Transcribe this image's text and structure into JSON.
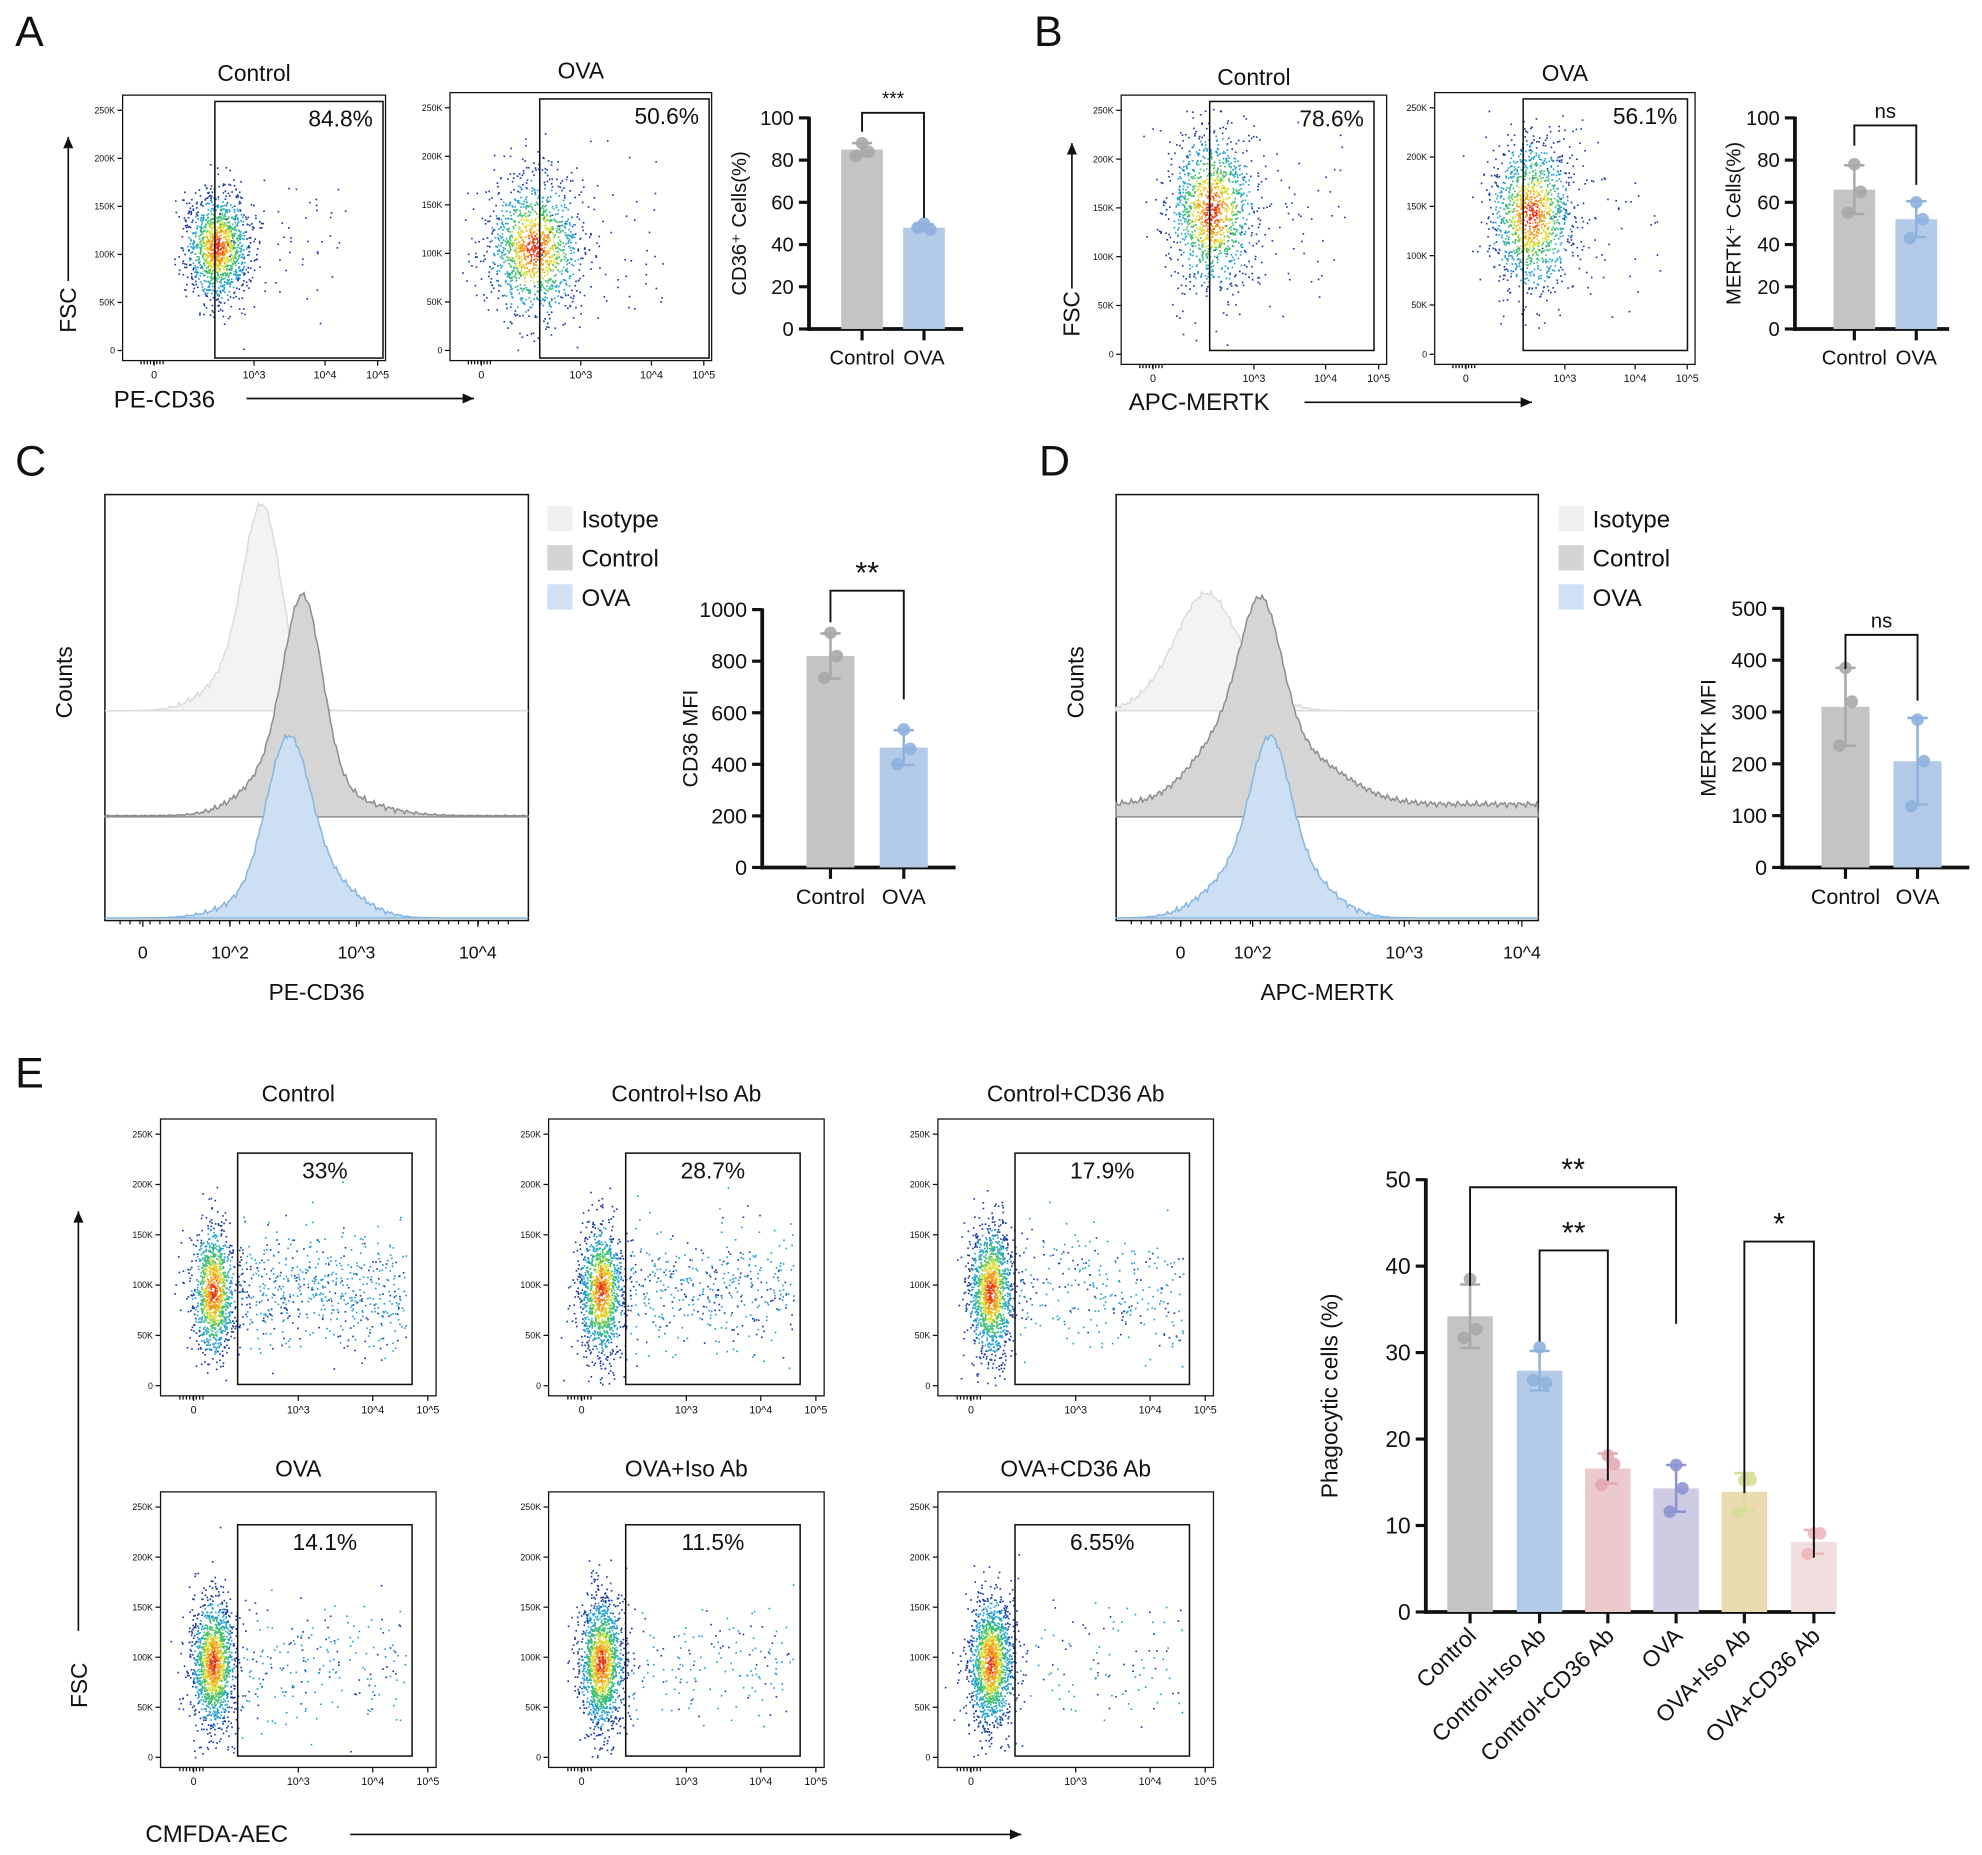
{
  "panel_letters": [
    "A",
    "B",
    "C",
    "D",
    "E"
  ],
  "chart_data": [
    {
      "id": "A1",
      "type": "scatter",
      "panel": "A",
      "title": "Control",
      "gate_percent": "84.8%",
      "gate_value": 84.8,
      "xlabel": "PE-CD36",
      "ylabel": "FSC",
      "y_ticks": [
        "0",
        "50K",
        "100K",
        "150K",
        "200K",
        "250K"
      ],
      "x_ticks": [
        "0",
        "10^3",
        "10^4",
        "10^5"
      ]
    },
    {
      "id": "A2",
      "type": "scatter",
      "panel": "A",
      "title": "OVA",
      "gate_percent": "50.6%",
      "gate_value": 50.6,
      "y_ticks": [
        "0",
        "50K",
        "100K",
        "150K",
        "200K",
        "250K"
      ],
      "x_ticks": [
        "0",
        "10^3",
        "10^4",
        "10^5"
      ]
    },
    {
      "id": "A3",
      "type": "bar",
      "panel": "A",
      "ylabel": "CD36⁺ Cells(%)",
      "ylim": [
        0,
        100
      ],
      "y_ticks": [
        "0",
        "20",
        "40",
        "60",
        "80",
        "100"
      ],
      "categories": [
        "Control",
        "OVA"
      ],
      "values": [
        85,
        48
      ],
      "points": [
        [
          88,
          84,
          82
        ],
        [
          50,
          47,
          48
        ]
      ],
      "colors": [
        "#c4c4c4",
        "#b3cbe8"
      ],
      "dot_colors": [
        "#a9a9a9",
        "#8fb1de"
      ],
      "significance": [
        {
          "from": 0,
          "to": 1,
          "label": "***"
        }
      ]
    },
    {
      "id": "B1",
      "type": "scatter",
      "panel": "B",
      "title": "Control",
      "gate_percent": "78.6%",
      "gate_value": 78.6,
      "xlabel": "APC-MERTK",
      "ylabel": "FSC",
      "y_ticks": [
        "0",
        "50K",
        "100K",
        "150K",
        "200K",
        "250K"
      ],
      "x_ticks": [
        "0",
        "10^3",
        "10^4",
        "10^5"
      ]
    },
    {
      "id": "B2",
      "type": "scatter",
      "panel": "B",
      "title": "OVA",
      "gate_percent": "56.1%",
      "gate_value": 56.1,
      "y_ticks": [
        "0",
        "50K",
        "100K",
        "150K",
        "200K",
        "250K"
      ],
      "x_ticks": [
        "0",
        "10^3",
        "10^4",
        "10^5"
      ]
    },
    {
      "id": "B3",
      "type": "bar",
      "panel": "B",
      "ylabel": "MERTK⁺ Cells(%)",
      "ylim": [
        0,
        100
      ],
      "y_ticks": [
        "0",
        "20",
        "40",
        "60",
        "80",
        "100"
      ],
      "categories": [
        "Control",
        "OVA"
      ],
      "values": [
        66,
        52
      ],
      "points": [
        [
          78,
          65,
          55
        ],
        [
          60,
          52,
          43
        ]
      ],
      "colors": [
        "#c4c4c4",
        "#b3cbe8"
      ],
      "dot_colors": [
        "#a9a9a9",
        "#8fb1de"
      ],
      "significance": [
        {
          "from": 0,
          "to": 1,
          "label": "ns"
        }
      ]
    },
    {
      "id": "C1",
      "type": "area",
      "panel": "C",
      "xlabel": "PE-CD36",
      "ylabel": "Counts",
      "x_ticks": [
        "0",
        "10^2",
        "10^3",
        "10^4"
      ],
      "legend": [
        "Isotype",
        "Control",
        "OVA"
      ],
      "legend_colors": [
        "#f0f0f0",
        "#d4d4d4",
        "#cfe1f3"
      ],
      "legend_position": "right"
    },
    {
      "id": "C2",
      "type": "bar",
      "panel": "C",
      "ylabel": "CD36 MFI",
      "ylim": [
        0,
        1000
      ],
      "y_ticks": [
        "0",
        "200",
        "400",
        "600",
        "800",
        "1000"
      ],
      "categories": [
        "Control",
        "OVA"
      ],
      "values": [
        820,
        465
      ],
      "points": [
        [
          910,
          820,
          735
        ],
        [
          535,
          460,
          400
        ]
      ],
      "colors": [
        "#c4c4c4",
        "#b3cbe8"
      ],
      "dot_colors": [
        "#a9a9a9",
        "#8fb1de"
      ],
      "significance": [
        {
          "from": 0,
          "to": 1,
          "label": "**"
        }
      ]
    },
    {
      "id": "D1",
      "type": "area",
      "panel": "D",
      "xlabel": "APC-MERTK",
      "ylabel": "Counts",
      "x_ticks": [
        "0",
        "10^2",
        "10^3",
        "10^4"
      ],
      "legend": [
        "Isotype",
        "Control",
        "OVA"
      ],
      "legend_colors": [
        "#f0f0f0",
        "#d4d4d4",
        "#cfe1f3"
      ],
      "legend_position": "right"
    },
    {
      "id": "D2",
      "type": "bar",
      "panel": "D",
      "ylabel": "MERTK MFI",
      "ylim": [
        0,
        500
      ],
      "y_ticks": [
        "0",
        "100",
        "200",
        "300",
        "400",
        "500"
      ],
      "categories": [
        "Control",
        "OVA"
      ],
      "values": [
        310,
        205
      ],
      "points": [
        [
          385,
          320,
          235
        ],
        [
          285,
          205,
          118
        ]
      ],
      "colors": [
        "#c4c4c4",
        "#b3cbe8"
      ],
      "dot_colors": [
        "#a9a9a9",
        "#8fb1de"
      ],
      "significance": [
        {
          "from": 0,
          "to": 1,
          "label": "ns"
        }
      ]
    },
    {
      "id": "E1",
      "type": "scatter",
      "panel": "E",
      "title": "Control",
      "gate_percent": "33%",
      "gate_value": 33,
      "y_ticks": [
        "0",
        "50K",
        "100K",
        "150K",
        "200K",
        "250K"
      ],
      "x_ticks": [
        "0",
        "10^3",
        "10^4",
        "10^5"
      ]
    },
    {
      "id": "E2",
      "type": "scatter",
      "panel": "E",
      "title": "Control+Iso Ab",
      "gate_percent": "28.7%",
      "gate_value": 28.7,
      "y_ticks": [
        "0",
        "50K",
        "100K",
        "150K",
        "200K",
        "250K"
      ],
      "x_ticks": [
        "0",
        "10^3",
        "10^4",
        "10^5"
      ]
    },
    {
      "id": "E3",
      "type": "scatter",
      "panel": "E",
      "title": "Control+CD36 Ab",
      "gate_percent": "17.9%",
      "gate_value": 17.9,
      "y_ticks": [
        "0",
        "50K",
        "100K",
        "150K",
        "200K",
        "250K"
      ],
      "x_ticks": [
        "0",
        "10^3",
        "10^4",
        "10^5"
      ]
    },
    {
      "id": "E4",
      "type": "scatter",
      "panel": "E",
      "title": "OVA",
      "gate_percent": "14.1%",
      "gate_value": 14.1,
      "y_ticks": [
        "0",
        "50K",
        "100K",
        "150K",
        "200K",
        "250K"
      ],
      "x_ticks": [
        "0",
        "10^3",
        "10^4",
        "10^5"
      ]
    },
    {
      "id": "E5",
      "type": "scatter",
      "panel": "E",
      "title": "OVA+Iso Ab",
      "gate_percent": "11.5%",
      "gate_value": 11.5,
      "y_ticks": [
        "0",
        "50K",
        "100K",
        "150K",
        "200K",
        "250K"
      ],
      "x_ticks": [
        "0",
        "10^3",
        "10^4",
        "10^5"
      ]
    },
    {
      "id": "E6",
      "type": "scatter",
      "panel": "E",
      "title": "OVA+CD36 Ab",
      "gate_percent": "6.55%",
      "gate_value": 6.55,
      "y_ticks": [
        "0",
        "50K",
        "100K",
        "150K",
        "200K",
        "250K"
      ],
      "x_ticks": [
        "0",
        "10^3",
        "10^4",
        "10^5"
      ]
    },
    {
      "id": "E7",
      "type": "bar",
      "panel": "E",
      "ylabel": "Phagocytic cells (%)",
      "ylim": [
        0,
        50
      ],
      "y_ticks": [
        "0",
        "10",
        "20",
        "30",
        "40",
        "50"
      ],
      "categories": [
        "Control",
        "Control+Iso Ab",
        "Control+CD36 Ab",
        "OVA",
        "OVA+Iso Ab",
        "OVA+CD36 Ab"
      ],
      "values": [
        34.2,
        27.9,
        16.6,
        14.3,
        13.9,
        8.1
      ],
      "points": [
        [
          38.5,
          32.7,
          31.7
        ],
        [
          30.6,
          26.5,
          26.8
        ],
        [
          18.1,
          17.1,
          14.7
        ],
        [
          17,
          14.3,
          11.6
        ],
        [
          15.2,
          15.3,
          11.5
        ],
        [
          9.1,
          9.1,
          6.7
        ]
      ],
      "colors": [
        "#c4c4c4",
        "#b3cbe8",
        "#ecc9cd",
        "#cdcce3",
        "#ebdcb0",
        "#f0dede"
      ],
      "dot_colors": [
        "#a9a9a9",
        "#8fb1de",
        "#e3aab2",
        "#8f93d0",
        "#d7dc9a",
        "#eeb8bd"
      ],
      "significance": [
        {
          "from": 0,
          "to": 3,
          "label": "**"
        },
        {
          "from": 1,
          "to": 2,
          "label": "**"
        },
        {
          "from": 4,
          "to": 5,
          "label": "*"
        }
      ]
    }
  ],
  "e_axis": {
    "xlabel": "CMFDA-AEC",
    "ylabel": "FSC"
  }
}
